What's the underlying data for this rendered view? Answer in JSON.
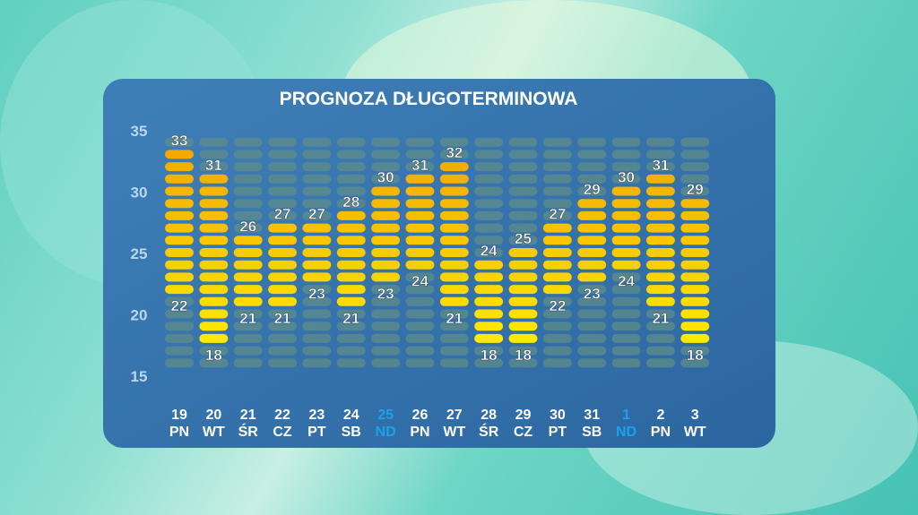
{
  "chart_data": {
    "type": "bar",
    "title": "PROGNOZA DŁUGOTERMINOWA",
    "ylim": [
      15,
      35
    ],
    "yticks": [
      35,
      30,
      25,
      20,
      15
    ],
    "segment_range": [
      16,
      34
    ],
    "grid": false,
    "categories": [
      {
        "date": "19",
        "day": "PN",
        "weekend": false
      },
      {
        "date": "20",
        "day": "WT",
        "weekend": false
      },
      {
        "date": "21",
        "day": "ŚR",
        "weekend": false
      },
      {
        "date": "22",
        "day": "CZ",
        "weekend": false
      },
      {
        "date": "23",
        "day": "PT",
        "weekend": false
      },
      {
        "date": "24",
        "day": "SB",
        "weekend": false
      },
      {
        "date": "25",
        "day": "ND",
        "weekend": true
      },
      {
        "date": "26",
        "day": "PN",
        "weekend": false
      },
      {
        "date": "27",
        "day": "WT",
        "weekend": false
      },
      {
        "date": "28",
        "day": "ŚR",
        "weekend": false
      },
      {
        "date": "29",
        "day": "CZ",
        "weekend": false
      },
      {
        "date": "30",
        "day": "PT",
        "weekend": false
      },
      {
        "date": "31",
        "day": "SB",
        "weekend": false
      },
      {
        "date": "1",
        "day": "ND",
        "weekend": true
      },
      {
        "date": "2",
        "day": "PN",
        "weekend": false
      },
      {
        "date": "3",
        "day": "WT",
        "weekend": false
      }
    ],
    "series": [
      {
        "values_high": [
          33,
          31,
          26,
          27,
          27,
          28,
          30,
          31,
          32,
          24,
          25,
          27,
          29,
          30,
          31,
          29
        ],
        "values_low": [
          22,
          18,
          21,
          21,
          23,
          21,
          23,
          24,
          21,
          18,
          18,
          22,
          23,
          24,
          21,
          18
        ]
      }
    ],
    "colors": {
      "panel": "#3a78b0",
      "lit_top": "#f3a400",
      "lit_bottom": "#fff200",
      "unlit": "#5f8e88",
      "text": "#ffffff",
      "axis_text": "#b8d8f0",
      "weekend": "#1aa3e8"
    }
  }
}
